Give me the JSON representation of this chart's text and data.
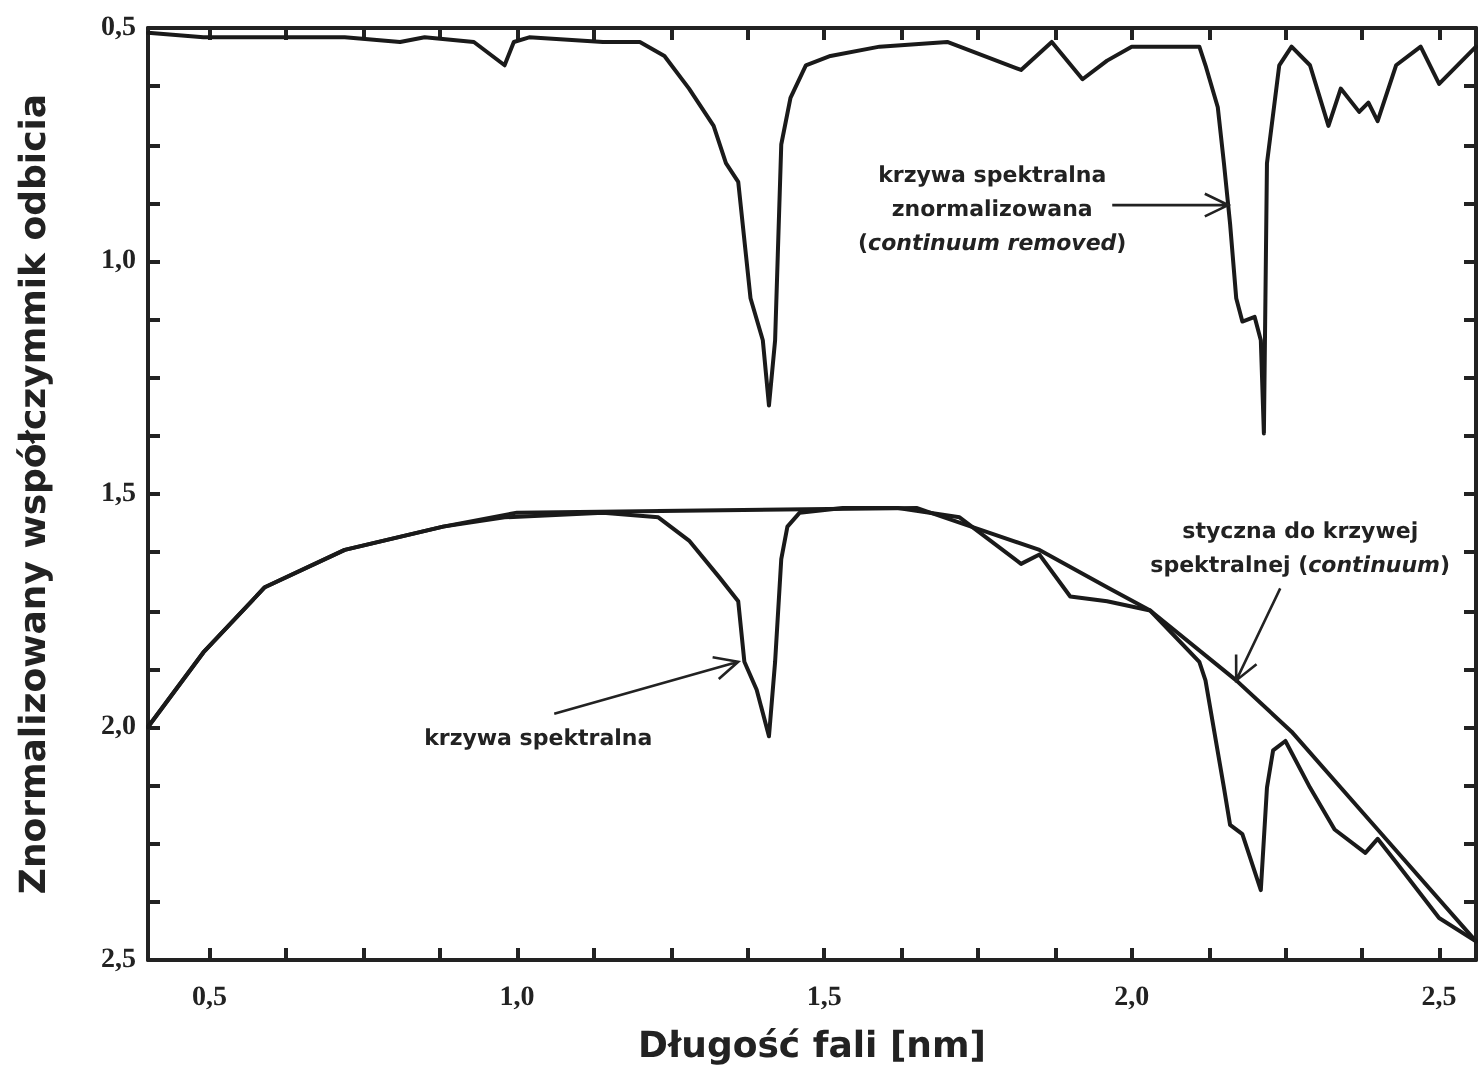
{
  "chart_data": {
    "type": "line",
    "xlabel": "Długość fali [nm]",
    "ylabel": "Znormalizowany współczymmik odbicia",
    "xlim": [
      0.4,
      2.56
    ],
    "ylim": [
      2.5,
      0.5
    ],
    "xticks": [
      {
        "value": 0.5,
        "label": "0,5"
      },
      {
        "value": 0.625,
        "label": null
      },
      {
        "value": 0.75,
        "label": null
      },
      {
        "value": 0.875,
        "label": null
      },
      {
        "value": 1.0,
        "label": "1,0"
      },
      {
        "value": 1.125,
        "label": null
      },
      {
        "value": 1.25,
        "label": null
      },
      {
        "value": 1.375,
        "label": null
      },
      {
        "value": 1.5,
        "label": "1,5"
      },
      {
        "value": 1.625,
        "label": null
      },
      {
        "value": 1.75,
        "label": null
      },
      {
        "value": 1.875,
        "label": null
      },
      {
        "value": 2.0,
        "label": "2,0"
      },
      {
        "value": 2.125,
        "label": null
      },
      {
        "value": 2.25,
        "label": null
      },
      {
        "value": 2.375,
        "label": null
      },
      {
        "value": 2.5,
        "label": "2,5"
      }
    ],
    "yticks": [
      {
        "value": 0.5,
        "label": "0,5"
      },
      {
        "value": 0.625,
        "label": null
      },
      {
        "value": 0.75,
        "label": null
      },
      {
        "value": 0.875,
        "label": null
      },
      {
        "value": 1.0,
        "label": "1,0"
      },
      {
        "value": 1.125,
        "label": null
      },
      {
        "value": 1.25,
        "label": null
      },
      {
        "value": 1.375,
        "label": null
      },
      {
        "value": 1.5,
        "label": "1,5"
      },
      {
        "value": 1.625,
        "label": null
      },
      {
        "value": 1.75,
        "label": null
      },
      {
        "value": 1.875,
        "label": null
      },
      {
        "value": 2.0,
        "label": "2,0"
      },
      {
        "value": 2.125,
        "label": null
      },
      {
        "value": 2.25,
        "label": null
      },
      {
        "value": 2.375,
        "label": null
      },
      {
        "value": 2.5,
        "label": "2,5"
      }
    ],
    "grid": false,
    "marker": "none",
    "line_style": "solid",
    "series": [
      {
        "color": "#1a1a1a",
        "x": [
          0.4,
          0.49,
          0.72,
          0.81,
          0.85,
          0.93,
          0.98,
          0.995,
          1.02,
          1.14,
          1.2,
          1.24,
          1.28,
          1.32,
          1.34,
          1.36,
          1.38,
          1.4,
          1.41,
          1.42,
          1.43,
          1.445,
          1.47,
          1.51,
          1.59,
          1.7,
          1.82,
          1.87,
          1.92,
          1.96,
          2.0,
          2.11,
          2.12,
          2.14,
          2.15,
          2.16,
          2.17,
          2.18,
          2.2,
          2.21,
          2.215,
          2.22,
          2.24,
          2.26,
          2.29,
          2.32,
          2.34,
          2.37,
          2.385,
          2.4,
          2.43,
          2.47,
          2.5,
          2.56
        ],
        "values": [
          0.51,
          0.52,
          0.52,
          0.53,
          0.52,
          0.53,
          0.58,
          0.53,
          0.52,
          0.53,
          0.53,
          0.56,
          0.63,
          0.71,
          0.79,
          0.83,
          1.08,
          1.17,
          1.31,
          1.17,
          0.75,
          0.65,
          0.58,
          0.56,
          0.54,
          0.53,
          0.59,
          0.53,
          0.61,
          0.57,
          0.54,
          0.54,
          0.58,
          0.67,
          0.79,
          0.92,
          1.08,
          1.13,
          1.12,
          1.17,
          1.37,
          0.79,
          0.58,
          0.54,
          0.58,
          0.71,
          0.63,
          0.68,
          0.66,
          0.7,
          0.58,
          0.54,
          0.62,
          0.54
        ]
      },
      {
        "color": "#1a1a1a",
        "x": [
          0.4,
          0.49,
          0.59,
          0.72,
          0.88,
          0.98,
          1.14,
          1.23,
          1.28,
          1.33,
          1.36,
          1.37,
          1.39,
          1.41,
          1.42,
          1.43,
          1.44,
          1.46,
          1.53,
          1.62,
          1.72,
          1.82,
          1.85,
          1.9,
          1.96,
          2.03,
          2.11,
          2.12,
          2.15,
          2.16,
          2.18,
          2.21,
          2.22,
          2.23,
          2.25,
          2.29,
          2.33,
          2.38,
          2.4,
          2.43,
          2.5,
          2.56
        ],
        "values": [
          2.0,
          1.84,
          1.7,
          1.62,
          1.57,
          1.55,
          1.54,
          1.55,
          1.6,
          1.68,
          1.73,
          1.86,
          1.92,
          2.02,
          1.86,
          1.64,
          1.57,
          1.54,
          1.53,
          1.53,
          1.55,
          1.65,
          1.63,
          1.72,
          1.73,
          1.75,
          1.86,
          1.9,
          2.13,
          2.21,
          2.23,
          2.35,
          2.13,
          2.05,
          2.03,
          2.13,
          2.22,
          2.27,
          2.24,
          2.29,
          2.41,
          2.46
        ]
      },
      {
        "color": "#1a1a1a",
        "x": [
          0.4,
          0.49,
          0.59,
          0.72,
          0.88,
          1.0,
          1.65,
          1.85,
          1.96,
          2.03,
          2.17,
          2.26,
          2.4,
          2.56
        ],
        "values": [
          2.0,
          1.84,
          1.7,
          1.62,
          1.57,
          1.54,
          1.53,
          1.62,
          1.7,
          1.75,
          1.9,
          2.01,
          2.22,
          2.46
        ]
      }
    ],
    "annotations": [
      {
        "text": "krzywa spektralna znormalizowana (continuum removed)",
        "x": 2.157,
        "y": 0.88
      },
      {
        "text": "krzywa spektralna",
        "x": 1.36,
        "y": 1.86
      },
      {
        "text": "styczna do krzywej spektralnej (continuum)",
        "x": 2.17,
        "y": 1.9
      }
    ]
  }
}
